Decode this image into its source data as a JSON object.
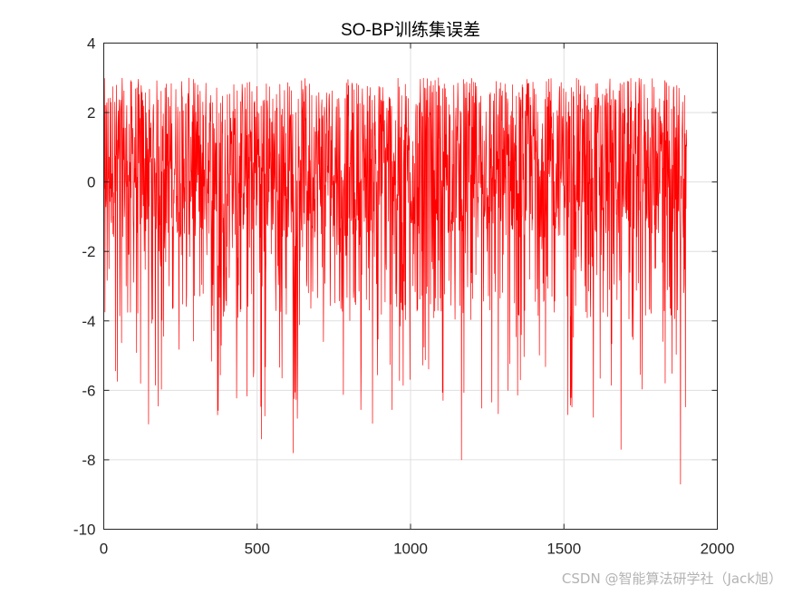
{
  "chart_data": {
    "type": "line",
    "title": "SO-BP训练集误差",
    "xlabel": "",
    "ylabel": "",
    "xlim": [
      0,
      2000
    ],
    "ylim": [
      -10,
      4
    ],
    "xticks": [
      0,
      500,
      1000,
      1500,
      2000
    ],
    "xtick_labels": [
      "0",
      "500",
      "1000",
      "1500",
      "2000"
    ],
    "yticks": [
      -10,
      -8,
      -6,
      -4,
      -2,
      0,
      2,
      4
    ],
    "ytick_labels": [
      "-10",
      "-8",
      "-6",
      "-4",
      "-2",
      "0",
      "2",
      "4"
    ],
    "grid": true,
    "series": [
      {
        "color": "#ff0000",
        "n_points": 1900,
        "x_start": 1,
        "x_end": 1900,
        "approx_range": [
          -8.7,
          3.2
        ],
        "notable_points": [
          {
            "x": 514,
            "y": -7.4
          },
          {
            "x": 617,
            "y": -7.8
          },
          {
            "x": 1166,
            "y": -8.0
          },
          {
            "x": 1686,
            "y": -7.7
          },
          {
            "x": 1880,
            "y": -8.7
          }
        ]
      }
    ]
  },
  "watermark": "CSDN @智能算法研学社（Jack旭）",
  "colors": {
    "line": "#ff0000",
    "grid": "#dfdfdf",
    "axes": "#262626"
  }
}
